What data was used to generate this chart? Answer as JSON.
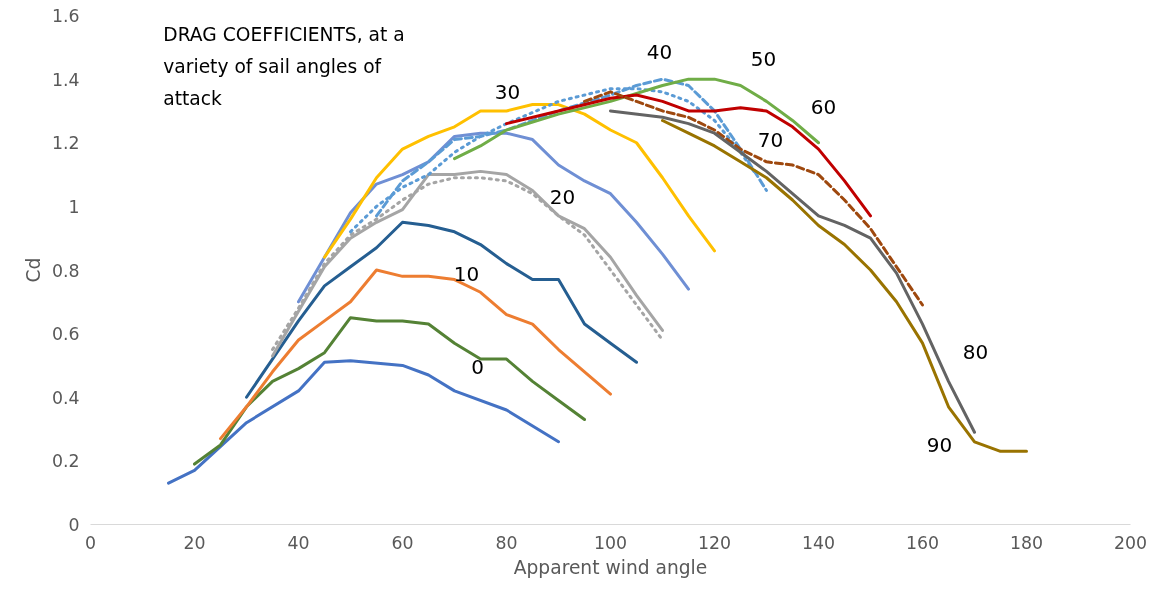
{
  "chart_data": {
    "type": "line",
    "title": "DRAG COEFFICIENTS, at a variety of sail angles of attack",
    "xlabel": "Apparent wind angle",
    "ylabel": "Cd",
    "xlim": [
      0,
      200
    ],
    "ylim": [
      0,
      1.6
    ],
    "xticks": [
      0,
      20,
      40,
      60,
      80,
      100,
      120,
      140,
      160,
      180,
      200
    ],
    "yticks": [
      0,
      0.2,
      0.4,
      0.6,
      0.8,
      1,
      1.2,
      1.4,
      1.6
    ],
    "grid": false,
    "marker": "none",
    "series": [
      {
        "color": "#4472c4",
        "x": [
          15,
          20,
          30,
          40,
          45,
          50,
          60,
          65,
          70,
          80,
          90
        ],
        "values": [
          0.13,
          0.17,
          0.32,
          0.42,
          0.51,
          0.515,
          0.5,
          0.47,
          0.42,
          0.36,
          0.26
        ]
      },
      {
        "name": "0",
        "color": "#548235",
        "x": [
          20,
          25,
          30,
          35,
          40,
          45,
          50,
          55,
          60,
          65,
          70,
          75,
          80,
          85,
          90,
          95
        ],
        "values": [
          0.19,
          0.25,
          0.37,
          0.45,
          0.49,
          0.54,
          0.65,
          0.64,
          0.64,
          0.63,
          0.57,
          0.52,
          0.52,
          0.45,
          0.39,
          0.33
        ]
      },
      {
        "name": "10",
        "color": "#ed7d31",
        "x": [
          25,
          30,
          35,
          40,
          45,
          50,
          55,
          60,
          65,
          70,
          75,
          80,
          85,
          90,
          95,
          100
        ],
        "values": [
          0.27,
          0.37,
          0.48,
          0.58,
          0.64,
          0.7,
          0.8,
          0.78,
          0.78,
          0.77,
          0.73,
          0.66,
          0.63,
          0.55,
          0.48,
          0.41
        ]
      },
      {
        "color": "#255e91",
        "x": [
          30,
          35,
          40,
          45,
          50,
          55,
          60,
          65,
          70,
          75,
          80,
          85,
          90,
          95,
          100,
          105
        ],
        "values": [
          0.4,
          0.52,
          0.64,
          0.75,
          0.81,
          0.87,
          0.95,
          0.94,
          0.92,
          0.88,
          0.82,
          0.77,
          0.77,
          0.63,
          0.57,
          0.51
        ]
      },
      {
        "name": "20",
        "color": "#a5a5a5",
        "x": [
          35,
          40,
          45,
          50,
          55,
          60,
          65,
          70,
          75,
          80,
          85,
          90,
          95,
          100,
          105,
          110
        ],
        "values": [
          0.53,
          0.67,
          0.81,
          0.9,
          0.95,
          0.99,
          1.1,
          1.1,
          1.11,
          1.1,
          1.05,
          0.97,
          0.93,
          0.84,
          0.72,
          0.61
        ]
      },
      {
        "color": "#a5a5a5",
        "line_style": "dotted",
        "x": [
          35,
          40,
          45,
          50,
          55,
          60,
          65,
          70,
          75,
          80,
          85,
          90,
          95,
          100,
          105,
          110
        ],
        "values": [
          0.55,
          0.68,
          0.82,
          0.91,
          0.96,
          1.02,
          1.07,
          1.09,
          1.09,
          1.08,
          1.04,
          0.97,
          0.91,
          0.8,
          0.69,
          0.58
        ]
      },
      {
        "color": "#6f8fd4",
        "x": [
          40,
          45,
          50,
          55,
          60,
          65,
          70,
          75,
          80,
          85,
          90,
          95,
          100,
          105,
          110,
          115
        ],
        "values": [
          0.7,
          0.84,
          0.98,
          1.07,
          1.1,
          1.14,
          1.22,
          1.23,
          1.23,
          1.21,
          1.13,
          1.08,
          1.04,
          0.95,
          0.85,
          0.74
        ]
      },
      {
        "name": "30",
        "color": "#ffc000",
        "x": [
          45,
          50,
          55,
          60,
          65,
          70,
          75,
          80,
          85,
          90,
          95,
          100,
          105,
          110,
          115,
          120
        ],
        "values": [
          0.84,
          0.96,
          1.09,
          1.18,
          1.22,
          1.25,
          1.3,
          1.3,
          1.32,
          1.32,
          1.29,
          1.24,
          1.2,
          1.09,
          0.97,
          0.86
        ]
      },
      {
        "name": "40",
        "color": "#5b9bd5",
        "line_style": "dashed",
        "x": [
          55,
          60,
          65,
          70,
          75,
          80,
          90,
          100,
          105,
          110,
          115,
          120,
          125,
          130
        ],
        "values": [
          0.97,
          1.08,
          1.14,
          1.21,
          1.22,
          1.24,
          1.3,
          1.35,
          1.38,
          1.4,
          1.38,
          1.3,
          1.18,
          1.05
        ]
      },
      {
        "color": "#5b9bd5",
        "line_style": "dotted",
        "x": [
          50,
          55,
          60,
          65,
          70,
          75,
          80,
          90,
          100,
          105,
          110,
          115,
          120,
          125,
          128
        ],
        "values": [
          0.92,
          1.0,
          1.06,
          1.1,
          1.17,
          1.22,
          1.26,
          1.33,
          1.37,
          1.37,
          1.36,
          1.33,
          1.27,
          1.17,
          1.1
        ]
      },
      {
        "name": "50",
        "color": "#70ad47",
        "x": [
          70,
          75,
          80,
          90,
          100,
          110,
          115,
          120,
          125,
          130,
          135,
          140
        ],
        "values": [
          1.15,
          1.19,
          1.24,
          1.29,
          1.33,
          1.38,
          1.4,
          1.4,
          1.38,
          1.33,
          1.27,
          1.2
        ]
      },
      {
        "name": "60",
        "color": "#c00000",
        "x": [
          80,
          90,
          100,
          105,
          110,
          115,
          120,
          125,
          130,
          135,
          140,
          145,
          150
        ],
        "values": [
          1.26,
          1.3,
          1.34,
          1.35,
          1.33,
          1.3,
          1.3,
          1.31,
          1.3,
          1.25,
          1.18,
          1.08,
          0.97
        ]
      },
      {
        "name": "70",
        "color": "#9e480e",
        "line_style": "dashed",
        "x": [
          95,
          100,
          105,
          110,
          115,
          120,
          125,
          130,
          135,
          140,
          145,
          150,
          155,
          160
        ],
        "values": [
          1.33,
          1.36,
          1.33,
          1.3,
          1.28,
          1.24,
          1.18,
          1.14,
          1.13,
          1.1,
          1.02,
          0.93,
          0.81,
          0.69
        ]
      },
      {
        "name": "80",
        "color": "#636363",
        "x": [
          100,
          110,
          115,
          120,
          125,
          130,
          135,
          140,
          145,
          150,
          155,
          160,
          165,
          170
        ],
        "values": [
          1.3,
          1.28,
          1.26,
          1.23,
          1.17,
          1.11,
          1.04,
          0.97,
          0.94,
          0.9,
          0.79,
          0.63,
          0.45,
          0.29
        ]
      },
      {
        "name": "90",
        "color": "#997300",
        "x": [
          110,
          115,
          120,
          125,
          130,
          135,
          140,
          145,
          150,
          155,
          160,
          165,
          170,
          175,
          180
        ],
        "values": [
          1.27,
          1.23,
          1.19,
          1.14,
          1.09,
          1.02,
          0.94,
          0.88,
          0.8,
          0.7,
          0.57,
          0.37,
          0.26,
          0.23,
          0.23
        ]
      }
    ]
  }
}
